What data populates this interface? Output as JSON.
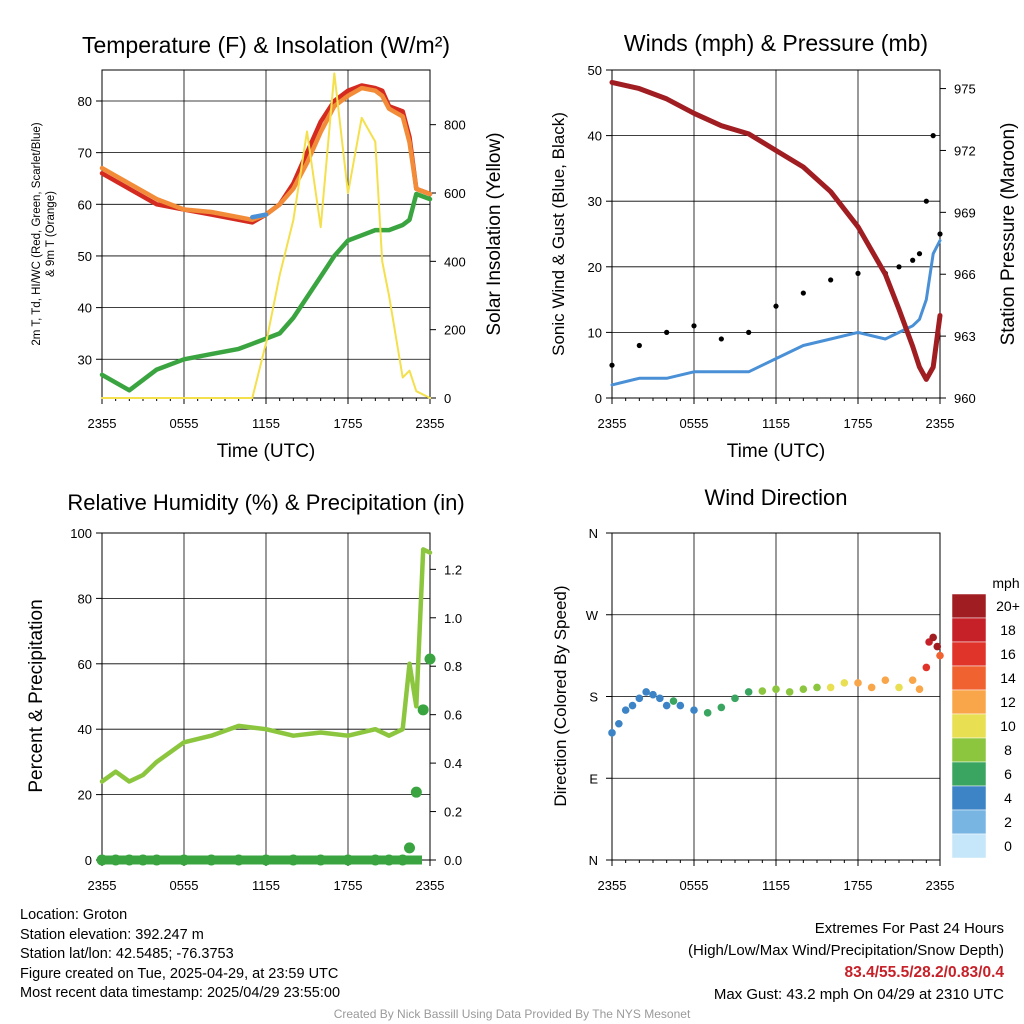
{
  "panels": {
    "temperature": {
      "title": "Temperature (F) & Insolation (W/m²)",
      "ylabel_left": [
        "2m T, Td, HI/WC (Red, Green, Scarlet/Blue)",
        "& 9m T (Orange)"
      ],
      "ylabel_right": "Solar Insolation (Yellow)",
      "xlabel": "Time (UTC)"
    },
    "winds": {
      "title": "Winds (mph) & Pressure (mb)",
      "ylabel_left": "Sonic Wind & Gust (Blue, Black)",
      "ylabel_right": "Station Pressure (Maroon)",
      "xlabel": "Time (UTC)"
    },
    "humidity": {
      "title": "Relative Humidity (%) & Precipitation (in)",
      "ylabel_left": "Percent & Precipitation"
    },
    "direction": {
      "title": "Wind Direction",
      "ylabel_left": "Direction (Colored By Speed)",
      "legend_title": "mph"
    }
  },
  "chart_data": [
    {
      "type": "line",
      "title": "Temperature (F) & Insolation (W/m²)",
      "xlabel": "Time (UTC)",
      "x_hours": [
        0,
        2,
        4,
        6,
        8,
        10,
        11,
        12,
        13,
        14,
        15,
        16,
        17,
        18,
        19,
        20,
        20.5,
        21,
        22,
        22.5,
        23,
        24
      ],
      "ylim": [
        22.5,
        86
      ],
      "ylim_right": [
        0,
        960
      ],
      "yticks": [
        30,
        40,
        50,
        60,
        70,
        80
      ],
      "yticks_right": [
        0,
        200,
        400,
        600,
        800
      ],
      "series": [
        {
          "name": "2m T",
          "color": "#d42a1f",
          "values": [
            66,
            63,
            60,
            59,
            58,
            57,
            56.5,
            58,
            60,
            64,
            70,
            76,
            80,
            82,
            83,
            82.5,
            82,
            79,
            78,
            73,
            63,
            62
          ]
        },
        {
          "name": "9m T",
          "color": "#f28c38",
          "values": [
            67,
            64,
            61,
            59,
            58.5,
            57.5,
            57,
            58,
            60,
            63,
            68,
            74,
            79,
            81,
            82.5,
            82,
            81,
            78.5,
            77,
            72,
            63,
            62
          ]
        },
        {
          "name": "Td",
          "color": "#3aa540",
          "values": [
            27,
            24,
            28,
            30,
            31,
            32,
            33,
            34,
            35,
            38,
            42,
            46,
            50,
            53,
            54,
            55,
            55,
            55,
            56,
            57,
            62,
            61
          ]
        },
        {
          "name": "HI/WC",
          "color": "#4a90d6",
          "values": [
            null,
            null,
            null,
            null,
            null,
            null,
            57.5,
            58,
            null,
            null,
            null,
            null,
            null,
            null,
            null,
            null,
            null,
            null,
            null,
            null,
            null,
            null
          ]
        },
        {
          "name": "Solar Insolation",
          "color": "#f4e04d",
          "axis": "right",
          "values": [
            0,
            0,
            0,
            0,
            0,
            0,
            0,
            160,
            360,
            520,
            780,
            500,
            950,
            600,
            820,
            750,
            400,
            300,
            60,
            80,
            20,
            0
          ]
        }
      ]
    },
    {
      "type": "line",
      "title": "Winds (mph) & Pressure (mb)",
      "xlabel": "Time (UTC)",
      "x_hours": [
        0,
        2,
        4,
        6,
        8,
        10,
        12,
        14,
        16,
        18,
        20,
        21,
        22,
        22.5,
        23,
        23.5,
        24
      ],
      "ylim": [
        0,
        50
      ],
      "ylim_right": [
        960,
        975.9
      ],
      "yticks": [
        0,
        10,
        20,
        30,
        40,
        50
      ],
      "yticks_right": [
        960,
        963,
        966,
        969,
        972,
        975
      ],
      "series": [
        {
          "name": "Sonic Wind",
          "color": "#4a90d6",
          "values": [
            2,
            3,
            3,
            4,
            4,
            4,
            6,
            8,
            9,
            10,
            9,
            10,
            11,
            12,
            15,
            22,
            24
          ]
        },
        {
          "name": "Gust",
          "color": "#000000",
          "style": "dots",
          "values": [
            5,
            8,
            10,
            11,
            9,
            10,
            14,
            16,
            18,
            19,
            19,
            20,
            21,
            22,
            30,
            40,
            25
          ]
        },
        {
          "name": "Station Pressure",
          "color": "#a01d22",
          "axis": "right",
          "values": [
            975.3,
            975.0,
            974.5,
            973.8,
            973.2,
            972.8,
            972.0,
            971.2,
            970.0,
            968.3,
            966.0,
            964.3,
            962.5,
            961.5,
            960.9,
            961.5,
            964.0
          ]
        }
      ]
    },
    {
      "type": "line",
      "title": "Relative Humidity (%) & Precipitation (in)",
      "ylabel": "Percent & Precipitation",
      "x_hours": [
        0,
        1,
        2,
        3,
        4,
        6,
        8,
        10,
        12,
        14,
        16,
        18,
        20,
        21,
        22,
        22.5,
        23,
        23.5,
        24
      ],
      "ylim": [
        0,
        100
      ],
      "ylim_right": [
        0,
        1.35
      ],
      "yticks": [
        0,
        20,
        40,
        60,
        80,
        100
      ],
      "yticks_right": [
        0.0,
        0.2,
        0.4,
        0.6,
        0.8,
        1.0,
        1.2
      ],
      "series": [
        {
          "name": "Relative Humidity",
          "color": "#8cc63f",
          "values": [
            24,
            27,
            24,
            26,
            30,
            36,
            38,
            41,
            40,
            38,
            39,
            38,
            40,
            38,
            40,
            60,
            47,
            95,
            94
          ]
        },
        {
          "name": "Precipitation",
          "color": "#3aa540",
          "axis": "right",
          "values": [
            0,
            0,
            0,
            0,
            0,
            0,
            0,
            0,
            0,
            0,
            0,
            0,
            0,
            0,
            0,
            0.05,
            0.28,
            0.62,
            0.83
          ]
        }
      ]
    },
    {
      "type": "scatter",
      "title": "Wind Direction",
      "ylabel": "Direction (Colored By Speed)",
      "yticks": [
        "N",
        "E",
        "S",
        "W",
        "N"
      ],
      "ylim": [
        0,
        360
      ],
      "points": [
        [
          0,
          140,
          3
        ],
        [
          0.5,
          150,
          4
        ],
        [
          1,
          165,
          4
        ],
        [
          1.5,
          170,
          4
        ],
        [
          2,
          178,
          4
        ],
        [
          2.5,
          185,
          4
        ],
        [
          3,
          182,
          4
        ],
        [
          3.5,
          178,
          4
        ],
        [
          4,
          170,
          4
        ],
        [
          4.5,
          175,
          5
        ],
        [
          5,
          170,
          4
        ],
        [
          6,
          165,
          4
        ],
        [
          7,
          162,
          5
        ],
        [
          8,
          168,
          5
        ],
        [
          9,
          178,
          6
        ],
        [
          10,
          185,
          6
        ],
        [
          11,
          186,
          7
        ],
        [
          12,
          188,
          7
        ],
        [
          13,
          185,
          8
        ],
        [
          14,
          188,
          8
        ],
        [
          15,
          190,
          8
        ],
        [
          16,
          190,
          9
        ],
        [
          17,
          195,
          10
        ],
        [
          18,
          195,
          12
        ],
        [
          19,
          190,
          11
        ],
        [
          20,
          198,
          12
        ],
        [
          21,
          190,
          10
        ],
        [
          22,
          198,
          11
        ],
        [
          22.5,
          188,
          12
        ],
        [
          23,
          212,
          16
        ],
        [
          23.2,
          240,
          18
        ],
        [
          23.5,
          245,
          20
        ],
        [
          23.8,
          235,
          22
        ],
        [
          24,
          225,
          14
        ]
      ],
      "legend": {
        "title": "mph",
        "levels": [
          "20+",
          "18",
          "16",
          "14",
          "12",
          "10",
          "8",
          "6",
          "4",
          "2",
          "0"
        ],
        "colors": [
          "#a01d22",
          "#c62128",
          "#e0332a",
          "#f0622f",
          "#f9a54a",
          "#e8df52",
          "#8cc63f",
          "#3aa560",
          "#3d84c6",
          "#78b5e3",
          "#c6e7fa"
        ]
      }
    }
  ],
  "x_ticks": [
    "2355",
    "0555",
    "1155",
    "1755",
    "2355"
  ],
  "footer": {
    "location": "Location: Groton",
    "elevation": "Station elevation: 392.247 m",
    "latlon": "Station lat/lon: 42.5485; -76.3753",
    "created": "Figure created on Tue, 2025-04-29, at 23:59 UTC",
    "recent": "Most recent data timestamp: 2025/04/29 23:55:00",
    "extremes_title": "Extremes For Past 24 Hours",
    "extremes_desc": "(High/Low/Max Wind/Precipitation/Snow Depth)",
    "extremes_values": "83.4/55.5/28.2/0.83/0.4",
    "max_gust": "Max Gust: 43.2 mph On 04/29 at 2310 UTC",
    "credit": "Created By Nick Bassill Using Data Provided By The NYS Mesonet"
  }
}
